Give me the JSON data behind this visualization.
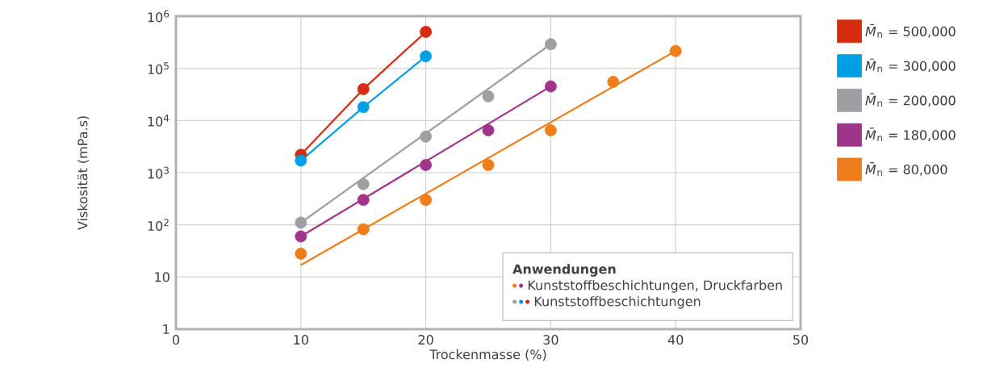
{
  "chart_data": {
    "type": "scatter",
    "xlabel": "Trockenmasse (%)",
    "ylabel": "Viskosität (mPa.s)",
    "log": "y",
    "grid": true,
    "legend": "right",
    "marker": "circle",
    "xlim": [
      0,
      50
    ],
    "xticks": [
      0,
      10,
      20,
      30,
      40,
      50
    ],
    "ylim": [
      1,
      1000000
    ],
    "yticks": [
      1,
      10,
      {
        "value": 100,
        "label": "10$^{2}$"
      },
      {
        "value": 1000,
        "label": "10$^{3}$"
      },
      {
        "value": 10000,
        "label": "10$^{4}$"
      },
      {
        "value": 100000,
        "label": "10$^{5}$"
      },
      {
        "value": 1000000,
        "label": "10$^{6}$"
      }
    ],
    "annotations": [
      "Anwendungen",
      "Kunststoffbeschichtungen, Druckfarben",
      "Kunststoffbeschichtungen"
    ],
    "series": [
      {
        "name": "*M̄*$_{n}$ = 500,000",
        "color": "#d42b11",
        "x": [
          10,
          15,
          20
        ],
        "values": [
          2200,
          40000,
          500000
        ]
      },
      {
        "name": "*M̄*$_{n}$ = 300,000",
        "color": "#009fe3",
        "x": [
          10,
          15,
          20
        ],
        "values": [
          1700,
          18000,
          170000
        ]
      },
      {
        "name": "*M̄*$_{n}$ = 200,000",
        "color": "#9d9fa2",
        "x": [
          10,
          15,
          20,
          25,
          30
        ],
        "values": [
          110,
          600,
          4900,
          29000,
          290000
        ]
      },
      {
        "name": "*M̄*$_{n}$ = 180,000",
        "color": "#a0348a",
        "x": [
          10,
          15,
          20,
          25,
          30
        ],
        "values": [
          60,
          300,
          1400,
          6500,
          45000
        ]
      },
      {
        "name": "*M̄*$_{n}$ = 80,000",
        "color": "#ef7d1a",
        "x": [
          10,
          15,
          20,
          25,
          30,
          35,
          40
        ],
        "values": [
          28,
          82,
          300,
          1400,
          6500,
          55000,
          215000
        ]
      },
      {
        "type": "line",
        "marker": "none",
        "color": "#d42b11",
        "x": [
          10,
          15,
          20
        ],
        "values": [
          2200,
          40000,
          500000
        ]
      },
      {
        "type": "line",
        "marker": "none",
        "color": "#009fe3",
        "x": [
          10,
          15,
          20
        ],
        "values": [
          1700,
          18000,
          170000
        ]
      },
      {
        "type": "line",
        "marker": "none",
        "color": "#9d9fa2",
        "x": [
          10,
          30
        ],
        "values": [
          110,
          290000
        ]
      },
      {
        "type": "line",
        "marker": "none",
        "color": "#a0348a",
        "x": [
          10,
          30
        ],
        "values": [
          60,
          45000
        ]
      },
      {
        "type": "line",
        "marker": "none",
        "color": "#ef7d1a",
        "x": [
          10,
          40
        ],
        "values": [
          17,
          215000
        ]
      }
    ]
  }
}
